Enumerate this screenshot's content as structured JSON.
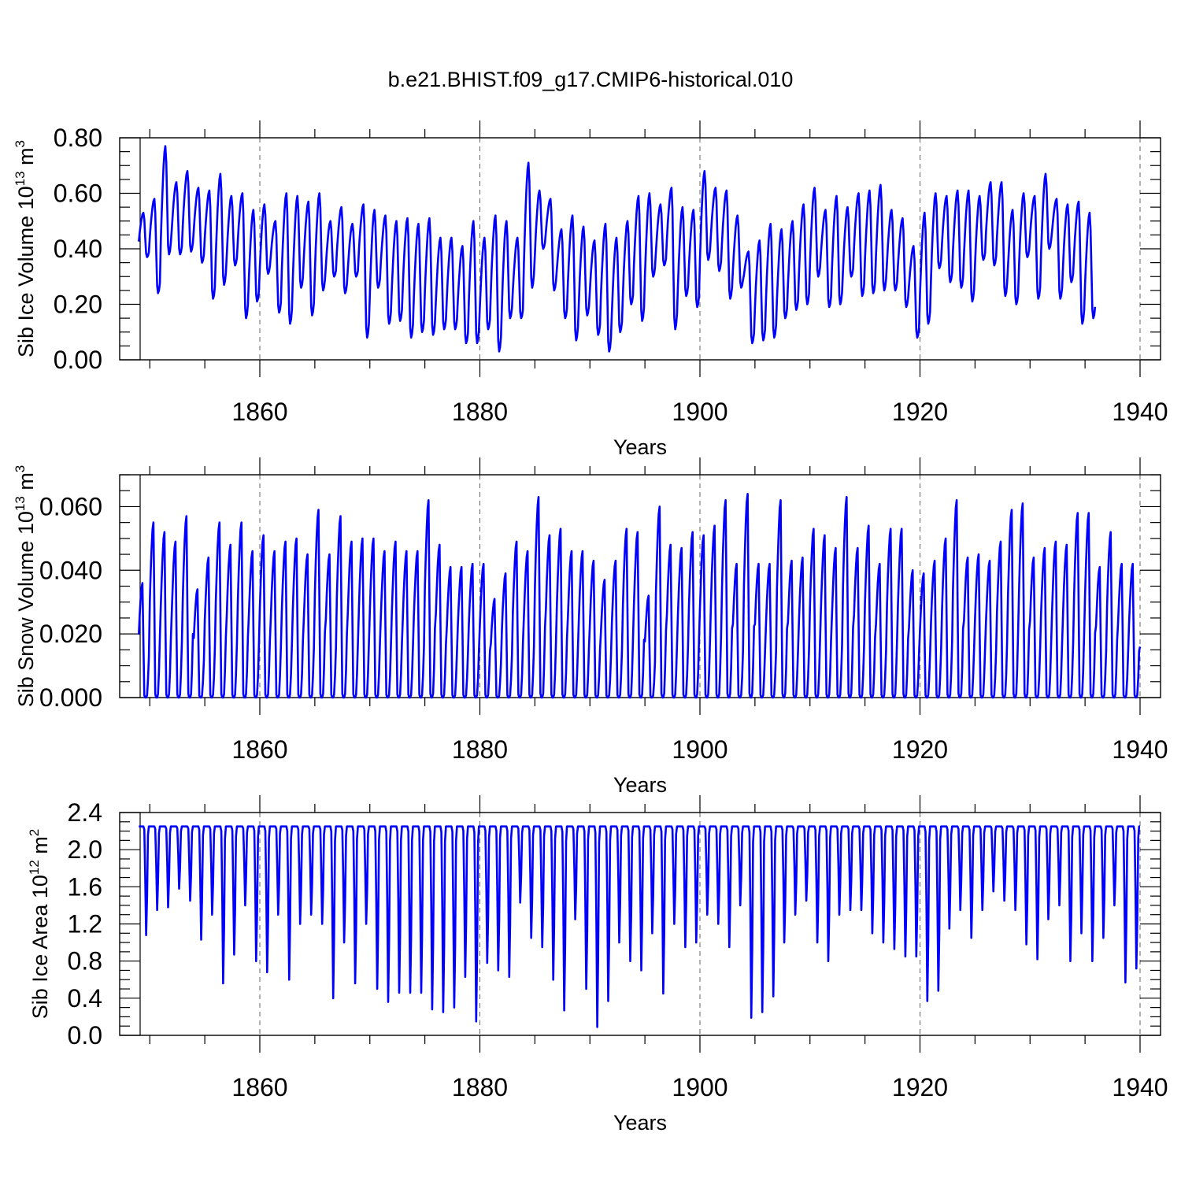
{
  "figure": {
    "title": "b.e21.BHIST.f09_g17.CMIP6-historical.010"
  },
  "style": {
    "line_color": "#0000ff",
    "grid_color": "#666666"
  },
  "chart_data": [
    {
      "type": "line",
      "title": "",
      "xlabel": "Years",
      "ylabel": "Sib Ice Volume 10",
      "ylabel_exp": "13",
      "ylabel_unit": " m",
      "ylabel_unit_exp": "3",
      "xlim": [
        1849,
        1940
      ],
      "ylim": [
        0,
        0.8
      ],
      "xticks": [
        1860,
        1880,
        1900,
        1920,
        1940
      ],
      "xtick_labels": [
        "1860",
        "1880",
        "1900",
        "1920",
        "1940"
      ],
      "yticks": [
        0,
        0.2,
        0.4,
        0.6,
        0.8
      ],
      "ytick_labels": [
        "0.00",
        "0.20",
        "0.40",
        "0.60",
        "0.80"
      ],
      "y_minor_step": 0.05,
      "grid": "vertical dashed at major x ticks",
      "series": [
        {
          "years": [
            1849,
            1850,
            1851,
            1852,
            1853,
            1854,
            1855,
            1856,
            1857,
            1858,
            1859,
            1860,
            1861,
            1862,
            1863,
            1864,
            1865,
            1866,
            1867,
            1868,
            1869,
            1870,
            1871,
            1872,
            1873,
            1874,
            1875,
            1876,
            1877,
            1878,
            1879,
            1880,
            1881,
            1882,
            1883,
            1884,
            1885,
            1886,
            1887,
            1888,
            1889,
            1890,
            1891,
            1892,
            1893,
            1894,
            1895,
            1896,
            1897,
            1898,
            1899,
            1900,
            1901,
            1902,
            1903,
            1904,
            1905,
            1906,
            1907,
            1908,
            1909,
            1910,
            1911,
            1912,
            1913,
            1914,
            1915,
            1916,
            1917,
            1918,
            1919,
            1920,
            1921,
            1922,
            1923,
            1924,
            1925,
            1926,
            1927,
            1928,
            1929,
            1930,
            1931,
            1932,
            1933,
            1934,
            1935,
            1936,
            1937,
            1938,
            1939
          ],
          "annual_max": [
            0.53,
            0.58,
            0.77,
            0.64,
            0.68,
            0.62,
            0.61,
            0.67,
            0.59,
            0.6,
            0.54,
            0.56,
            0.5,
            0.6,
            0.59,
            0.57,
            0.6,
            0.5,
            0.55,
            0.49,
            0.56,
            0.54,
            0.52,
            0.5,
            0.51,
            0.49,
            0.51,
            0.44,
            0.44,
            0.41,
            0.5,
            0.44,
            0.52,
            0.5,
            0.44,
            0.71,
            0.61,
            0.58,
            0.47,
            0.52,
            0.48,
            0.43,
            0.49,
            0.44,
            0.5,
            0.59,
            0.6,
            0.56,
            0.62,
            0.55,
            0.54,
            0.68,
            0.62,
            0.61,
            0.52,
            0.39,
            0.43,
            0.49,
            0.47,
            0.5,
            0.56,
            0.62,
            0.54,
            0.59,
            0.55,
            0.6,
            0.61,
            0.63,
            0.54,
            0.51,
            0.41,
            0.53,
            0.6,
            0.59,
            0.61,
            0.61,
            0.59,
            0.64,
            0.64,
            0.54,
            0.6,
            0.59,
            0.67,
            0.58,
            0.56,
            0.57,
            0.53
          ],
          "annual_min": [
            0.37,
            0.24,
            0.38,
            0.38,
            0.39,
            0.35,
            0.22,
            0.27,
            0.34,
            0.15,
            0.21,
            0.31,
            0.17,
            0.13,
            0.26,
            0.16,
            0.25,
            0.3,
            0.24,
            0.3,
            0.08,
            0.26,
            0.13,
            0.14,
            0.08,
            0.1,
            0.09,
            0.11,
            0.11,
            0.06,
            0.06,
            0.11,
            0.03,
            0.15,
            0.15,
            0.26,
            0.4,
            0.25,
            0.15,
            0.07,
            0.16,
            0.09,
            0.03,
            0.1,
            0.2,
            0.14,
            0.3,
            0.34,
            0.11,
            0.23,
            0.19,
            0.36,
            0.32,
            0.22,
            0.26,
            0.06,
            0.07,
            0.08,
            0.15,
            0.18,
            0.2,
            0.3,
            0.19,
            0.2,
            0.3,
            0.23,
            0.24,
            0.25,
            0.25,
            0.19,
            0.08,
            0.13,
            0.33,
            0.28,
            0.26,
            0.21,
            0.36,
            0.34,
            0.23,
            0.2,
            0.37,
            0.22,
            0.4,
            0.22,
            0.28,
            0.13,
            0.15
          ]
        }
      ]
    },
    {
      "type": "line",
      "title": "",
      "xlabel": "Years",
      "ylabel": "Sib Snow Volume 10",
      "ylabel_exp": "13",
      "ylabel_unit": " m",
      "ylabel_unit_exp": "3",
      "xlim": [
        1849,
        1940
      ],
      "ylim": [
        0,
        0.07
      ],
      "xticks": [
        1860,
        1880,
        1900,
        1920,
        1940
      ],
      "xtick_labels": [
        "1860",
        "1880",
        "1900",
        "1920",
        "1940"
      ],
      "yticks": [
        0,
        0.02,
        0.04,
        0.06
      ],
      "ytick_labels": [
        "0.000",
        "0.020",
        "0.040",
        "0.060"
      ],
      "y_minor_step": 0.005,
      "grid": "vertical dashed at major x ticks",
      "series": [
        {
          "years": [
            1849,
            1850,
            1851,
            1852,
            1853,
            1854,
            1855,
            1856,
            1857,
            1858,
            1859,
            1860,
            1861,
            1862,
            1863,
            1864,
            1865,
            1866,
            1867,
            1868,
            1869,
            1870,
            1871,
            1872,
            1873,
            1874,
            1875,
            1876,
            1877,
            1878,
            1879,
            1880,
            1881,
            1882,
            1883,
            1884,
            1885,
            1886,
            1887,
            1888,
            1889,
            1890,
            1891,
            1892,
            1893,
            1894,
            1895,
            1896,
            1897,
            1898,
            1899,
            1900,
            1901,
            1902,
            1903,
            1904,
            1905,
            1906,
            1907,
            1908,
            1909,
            1910,
            1911,
            1912,
            1913,
            1914,
            1915,
            1916,
            1917,
            1918,
            1919,
            1920,
            1921,
            1922,
            1923,
            1924,
            1925,
            1926,
            1927,
            1928,
            1929,
            1930,
            1931,
            1932,
            1933,
            1934,
            1935,
            1936,
            1937,
            1938,
            1939
          ],
          "annual_max": [
            0.036,
            0.055,
            0.052,
            0.049,
            0.057,
            0.034,
            0.044,
            0.055,
            0.048,
            0.055,
            0.046,
            0.051,
            0.046,
            0.049,
            0.05,
            0.045,
            0.059,
            0.045,
            0.057,
            0.049,
            0.05,
            0.05,
            0.046,
            0.049,
            0.046,
            0.046,
            0.062,
            0.048,
            0.041,
            0.041,
            0.042,
            0.042,
            0.031,
            0.039,
            0.049,
            0.046,
            0.063,
            0.051,
            0.053,
            0.046,
            0.046,
            0.043,
            0.037,
            0.043,
            0.053,
            0.052,
            0.032,
            0.06,
            0.048,
            0.047,
            0.052,
            0.051,
            0.054,
            0.062,
            0.042,
            0.064,
            0.042,
            0.042,
            0.062,
            0.043,
            0.044,
            0.053,
            0.051,
            0.047,
            0.063,
            0.047,
            0.054,
            0.042,
            0.053,
            0.053,
            0.04,
            0.039,
            0.043,
            0.05,
            0.062,
            0.044,
            0.045,
            0.043,
            0.049,
            0.059,
            0.061,
            0.044,
            0.047,
            0.049,
            0.048,
            0.058,
            0.058,
            0.041,
            0.052,
            0.042,
            0.042
          ],
          "annual_min": [
            0.018,
            0.001,
            0.0,
            0.0,
            0.0,
            0.0,
            0.0,
            0.0,
            0.0,
            0.0,
            0.0,
            0.0,
            0.0,
            0.0,
            0.0,
            0.0,
            0.0,
            0.0,
            0.0,
            0.0,
            0.0,
            0.0,
            0.0,
            0.0,
            0.0,
            0.0,
            0.0,
            0.0,
            0.0,
            0.0,
            0.0,
            0.0,
            0.0,
            0.0,
            0.0,
            0.0,
            0.0,
            0.0,
            0.0,
            0.0,
            0.0,
            0.0,
            0.0,
            0.0,
            0.0,
            0.0,
            0.0,
            0.0,
            0.0,
            0.0,
            0.0,
            0.0,
            0.0,
            0.0,
            0.0,
            0.0,
            0.0,
            0.0,
            0.0,
            0.0,
            0.0,
            0.0,
            0.0,
            0.0,
            0.0,
            0.0,
            0.0,
            0.0,
            0.0,
            0.0,
            0.0,
            0.0,
            0.0,
            0.0,
            0.0,
            0.0,
            0.0,
            0.0,
            0.0,
            0.0,
            0.0,
            0.0,
            0.0,
            0.0,
            0.0,
            0.0,
            0.0,
            0.0,
            0.0,
            0.0,
            0.016
          ]
        }
      ]
    },
    {
      "type": "line",
      "title": "",
      "xlabel": "Years",
      "ylabel": "Sib Ice Area 10",
      "ylabel_exp": "12",
      "ylabel_unit": " m",
      "ylabel_unit_exp": "2",
      "xlim": [
        1849,
        1940
      ],
      "ylim": [
        0,
        2.4
      ],
      "xticks": [
        1860,
        1880,
        1900,
        1920,
        1940
      ],
      "xtick_labels": [
        "1860",
        "1880",
        "1900",
        "1920",
        "1940"
      ],
      "yticks": [
        0,
        0.4,
        0.8,
        1.2,
        1.6,
        2.0,
        2.4
      ],
      "ytick_labels": [
        "0.0",
        "0.4",
        "0.8",
        "1.2",
        "1.6",
        "2.0",
        "2.4"
      ],
      "y_minor_step": 0.1,
      "grid": "vertical dashed at major x ticks",
      "series": [
        {
          "years": [
            1849,
            1850,
            1851,
            1852,
            1853,
            1854,
            1855,
            1856,
            1857,
            1858,
            1859,
            1860,
            1861,
            1862,
            1863,
            1864,
            1865,
            1866,
            1867,
            1868,
            1869,
            1870,
            1871,
            1872,
            1873,
            1874,
            1875,
            1876,
            1877,
            1878,
            1879,
            1880,
            1881,
            1882,
            1883,
            1884,
            1885,
            1886,
            1887,
            1888,
            1889,
            1890,
            1891,
            1892,
            1893,
            1894,
            1895,
            1896,
            1897,
            1898,
            1899,
            1900,
            1901,
            1902,
            1903,
            1904,
            1905,
            1906,
            1907,
            1908,
            1909,
            1910,
            1911,
            1912,
            1913,
            1914,
            1915,
            1916,
            1917,
            1918,
            1919,
            1920,
            1921,
            1922,
            1923,
            1924,
            1925,
            1926,
            1927,
            1928,
            1929,
            1930,
            1931,
            1932,
            1933,
            1934,
            1935,
            1936,
            1937,
            1938,
            1939
          ],
          "annual_max": [
            2.25,
            2.25,
            2.25,
            2.25,
            2.25,
            2.25,
            2.25,
            2.25,
            2.25,
            2.25,
            2.25,
            2.25,
            2.25,
            2.25,
            2.25,
            2.25,
            2.25,
            2.25,
            2.25,
            2.25,
            2.25,
            2.25,
            2.25,
            2.25,
            2.25,
            2.25,
            2.25,
            2.25,
            2.25,
            2.25,
            2.25,
            2.25,
            2.25,
            2.25,
            2.25,
            2.25,
            2.25,
            2.25,
            2.25,
            2.25,
            2.25,
            2.25,
            2.25,
            2.25,
            2.25,
            2.25,
            2.25,
            2.25,
            2.25,
            2.25,
            2.25,
            2.25,
            2.25,
            2.25,
            2.25,
            2.25,
            2.25,
            2.25,
            2.25,
            2.25,
            2.25,
            2.25,
            2.25,
            2.25,
            2.25,
            2.25,
            2.25,
            2.25,
            2.25,
            2.25,
            2.25,
            2.25,
            2.25,
            2.25,
            2.25,
            2.25,
            2.25,
            2.25,
            2.25,
            2.25,
            2.25,
            2.25,
            2.25,
            2.25,
            2.25,
            2.25,
            2.25,
            2.25,
            2.25,
            2.25,
            2.25
          ],
          "annual_min": [
            1.08,
            1.35,
            1.38,
            1.58,
            1.45,
            1.03,
            1.3,
            0.56,
            0.87,
            1.4,
            0.8,
            0.68,
            1.3,
            0.6,
            1.2,
            1.3,
            1.2,
            0.4,
            1.0,
            0.56,
            1.2,
            0.5,
            0.36,
            0.46,
            0.46,
            0.46,
            0.28,
            0.25,
            0.3,
            0.63,
            0.15,
            0.78,
            0.7,
            0.63,
            1.43,
            1.05,
            0.95,
            0.6,
            0.27,
            1.25,
            0.5,
            0.09,
            0.37,
            1.0,
            0.8,
            0.7,
            1.1,
            0.45,
            1.2,
            0.95,
            1.0,
            1.3,
            1.2,
            0.95,
            1.4,
            0.19,
            0.25,
            0.42,
            1.0,
            1.3,
            1.45,
            1.0,
            0.8,
            1.3,
            1.35,
            1.35,
            1.1,
            1.0,
            0.93,
            0.85,
            0.85,
            0.37,
            0.48,
            1.15,
            1.35,
            1.05,
            1.35,
            1.55,
            1.45,
            1.35,
            0.98,
            0.82,
            1.25,
            1.4,
            0.8,
            1.1,
            0.8,
            1.05,
            1.4,
            0.57,
            0.72
          ]
        }
      ]
    }
  ]
}
